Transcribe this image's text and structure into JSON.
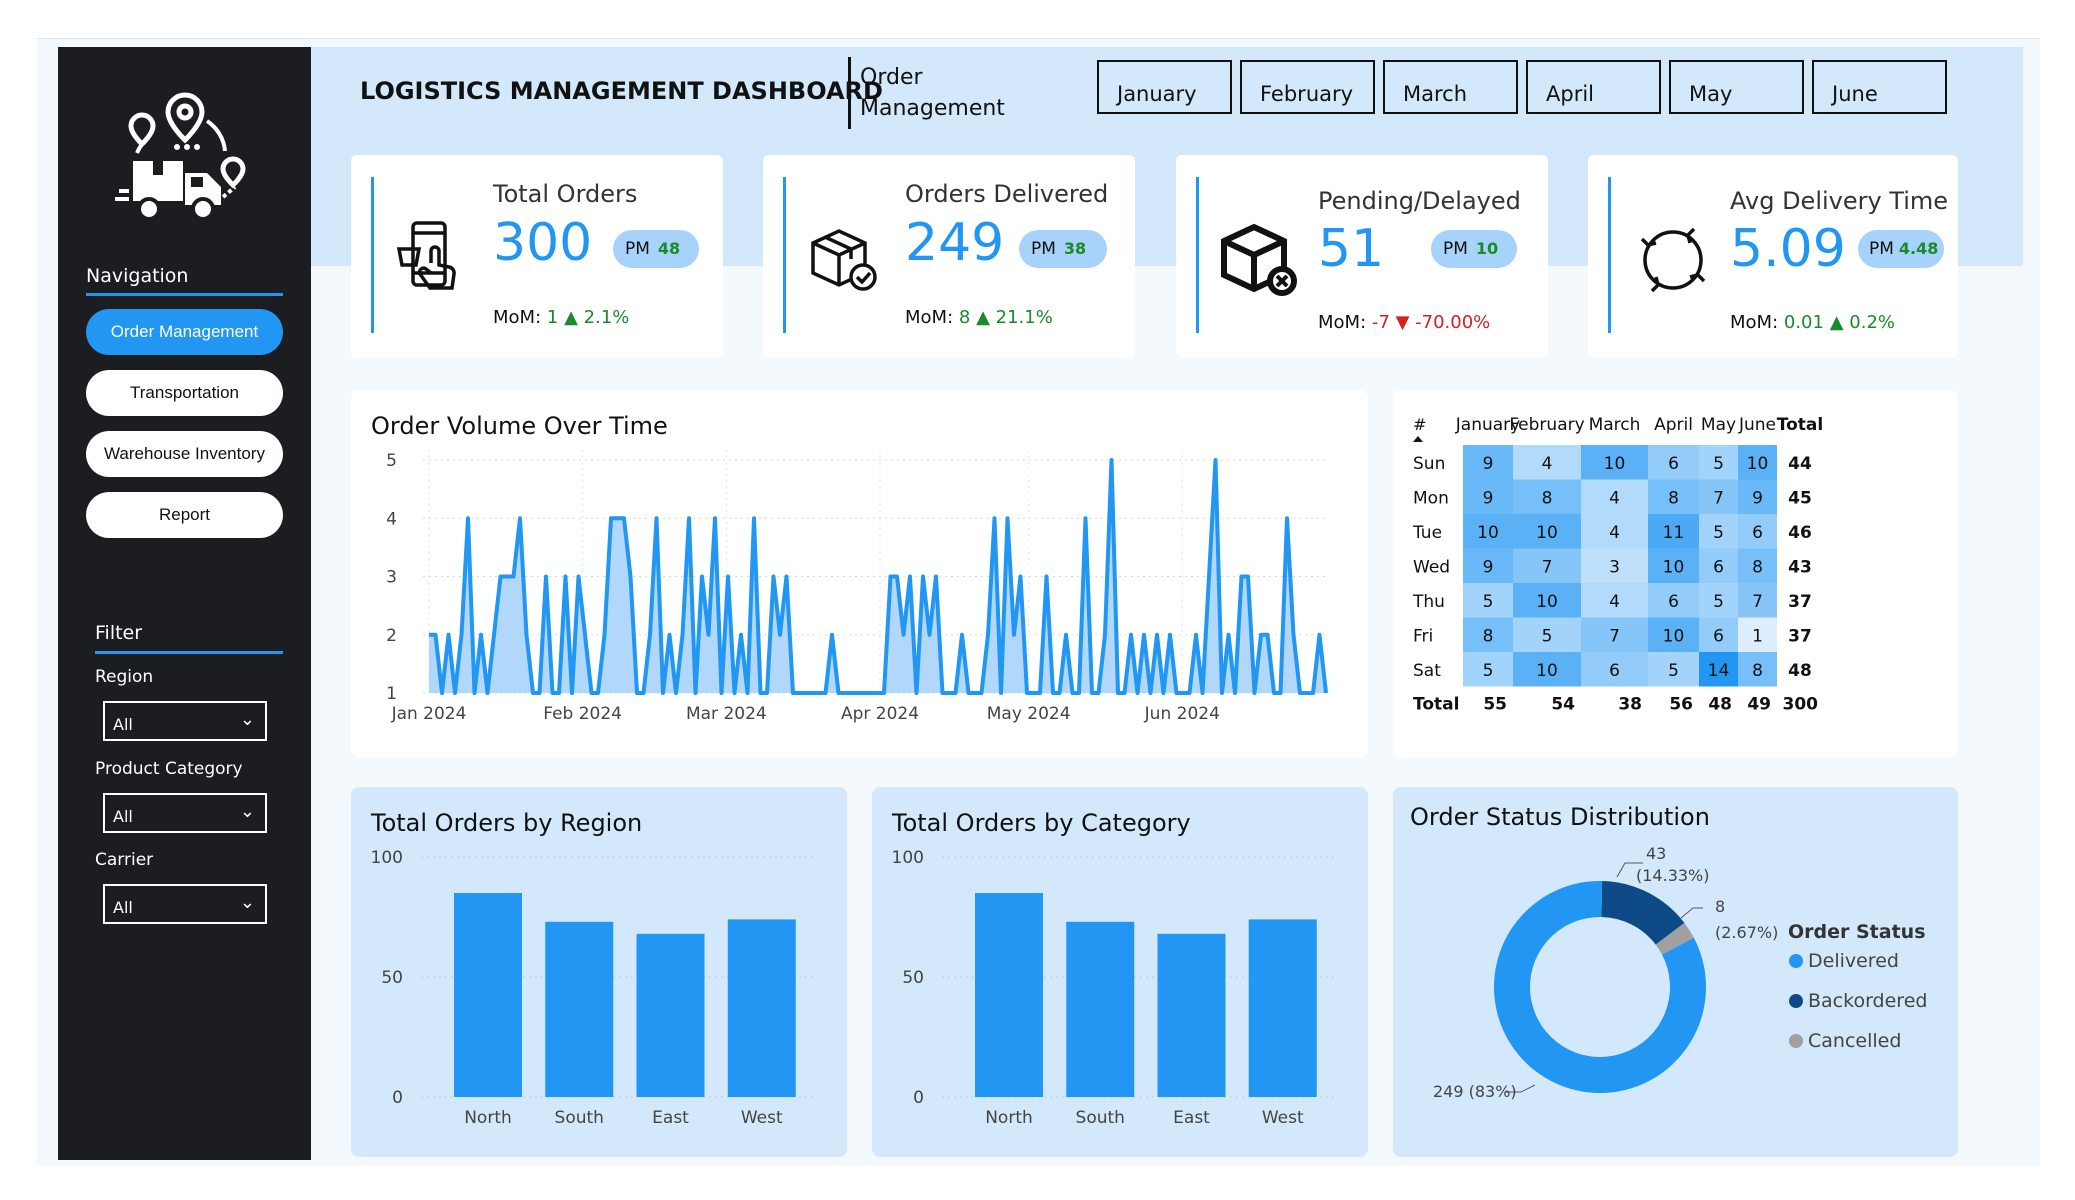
{
  "dashboard": {
    "title": "LOGISTICS MANAGEMENT DASHBOARD",
    "page_name": "Order Management"
  },
  "months": [
    "January",
    "February",
    "March",
    "April",
    "May",
    "June"
  ],
  "sidebar": {
    "nav_heading": "Navigation",
    "nav_items": [
      {
        "label": "Order Management",
        "active": true
      },
      {
        "label": "Transportation",
        "active": false
      },
      {
        "label": "Warehouse Inventory",
        "active": false
      },
      {
        "label": "Report",
        "active": false
      }
    ],
    "filter_heading": "Filter",
    "filters": [
      {
        "label": "Region",
        "value": "All"
      },
      {
        "label": "Product Category",
        "value": "All"
      },
      {
        "label": "Carrier",
        "value": "All"
      }
    ]
  },
  "kpis": [
    {
      "label": "Total Orders",
      "value": "300",
      "pm_label": "PM",
      "pm_value": "48",
      "mom_label": "MoM:",
      "mom_value": "1",
      "mom_pct": "2.1%",
      "trend": "up",
      "icon": "phone-order-icon"
    },
    {
      "label": "Orders Delivered",
      "value": "249",
      "pm_label": "PM",
      "pm_value": "38",
      "mom_label": "MoM:",
      "mom_value": "8",
      "mom_pct": "21.1%",
      "trend": "up",
      "icon": "package-check-icon"
    },
    {
      "label": "Pending/Delayed",
      "value": "51",
      "pm_label": "PM",
      "pm_value": "10",
      "mom_label": "MoM:",
      "mom_value": "-7",
      "mom_pct": "-70.00%",
      "trend": "down",
      "icon": "package-cancel-icon"
    },
    {
      "label": "Avg Delivery Time",
      "value": "5.09",
      "pm_label": "PM",
      "pm_value": "4.48",
      "mom_label": "MoM:",
      "mom_value": "0.01",
      "mom_pct": "0.2%",
      "trend": "up",
      "icon": "cycle-arrows-icon"
    }
  ],
  "colors": {
    "accent": "#2196f3",
    "dark_blue": "#0d4a86",
    "grey": "#a0a0a0",
    "positive": "#1b8a2b",
    "negative": "#d32020"
  },
  "chart_data": [
    {
      "type": "area",
      "title": "Order Volume Over Time",
      "x_ticks": [
        "Jan 2024",
        "Feb 2024",
        "Mar 2024",
        "Apr 2024",
        "May 2024",
        "Jun 2024"
      ],
      "ylim": [
        1,
        5
      ],
      "y_ticks": [
        1,
        2,
        3,
        4,
        5
      ],
      "x_start": "2024-01-01",
      "values": [
        2,
        2,
        1,
        2,
        1,
        2,
        4,
        1,
        2,
        1,
        2,
        3,
        3,
        3,
        4,
        2,
        1,
        1,
        3,
        1,
        1,
        3,
        1,
        3,
        2,
        1,
        1,
        2,
        4,
        4,
        4,
        3,
        1,
        1,
        2,
        4,
        1,
        2,
        1,
        2,
        4,
        1,
        3,
        2,
        4,
        1,
        3,
        1,
        2,
        1,
        4,
        1,
        1,
        3,
        2,
        3,
        1,
        1,
        1,
        1,
        1,
        1,
        2,
        1,
        1,
        1,
        1,
        1,
        1,
        1,
        1,
        3,
        3,
        2,
        3,
        1,
        3,
        2,
        3,
        1,
        1,
        1,
        2,
        1,
        1,
        1,
        2,
        4,
        1,
        4,
        2,
        3,
        1,
        1,
        1,
        3,
        1,
        1,
        2,
        1,
        1,
        4,
        1,
        1,
        2,
        5,
        1,
        1,
        2,
        1,
        2,
        1,
        2,
        1,
        2,
        1,
        1,
        1,
        2,
        1,
        3,
        5,
        1,
        2,
        1,
        3,
        3,
        1,
        2,
        2,
        1,
        1,
        4,
        2,
        1,
        1,
        1,
        2,
        1
      ]
    },
    {
      "type": "heatmap",
      "columns": [
        "January",
        "February",
        "March",
        "April",
        "May",
        "June"
      ],
      "header_hash": "#",
      "total_label": "Total",
      "rows": [
        {
          "day": "Sun",
          "values": [
            9,
            4,
            10,
            6,
            5,
            10
          ],
          "total": 44
        },
        {
          "day": "Mon",
          "values": [
            9,
            8,
            4,
            8,
            7,
            9
          ],
          "total": 45
        },
        {
          "day": "Tue",
          "values": [
            10,
            10,
            4,
            11,
            5,
            6
          ],
          "total": 46
        },
        {
          "day": "Wed",
          "values": [
            9,
            7,
            3,
            10,
            6,
            8
          ],
          "total": 43
        },
        {
          "day": "Thu",
          "values": [
            5,
            10,
            4,
            6,
            5,
            7
          ],
          "total": 37
        },
        {
          "day": "Fri",
          "values": [
            8,
            5,
            7,
            10,
            6,
            1
          ],
          "total": 37
        },
        {
          "day": "Sat",
          "values": [
            5,
            10,
            6,
            5,
            14,
            8
          ],
          "total": 48
        }
      ],
      "column_totals": [
        55,
        54,
        38,
        56,
        48,
        49
      ],
      "grand_total": 300
    },
    {
      "type": "bar",
      "title": "Total Orders by Region",
      "categories": [
        "North",
        "South",
        "East",
        "West"
      ],
      "values": [
        85,
        73,
        68,
        74
      ],
      "ylim": [
        0,
        100
      ],
      "y_ticks": [
        0,
        50,
        100
      ]
    },
    {
      "type": "bar",
      "title": "Total Orders by Category",
      "categories": [
        "North",
        "South",
        "East",
        "West"
      ],
      "values": [
        85,
        73,
        68,
        74
      ],
      "ylim": [
        0,
        100
      ],
      "y_ticks": [
        0,
        50,
        100
      ]
    },
    {
      "type": "pie",
      "title": "Order Status Distribution",
      "legend_title": "Order Status",
      "slices": [
        {
          "name": "Delivered",
          "value": 249,
          "label": "249 (83%)",
          "color": "#2196f3"
        },
        {
          "name": "Backordered",
          "value": 43,
          "label_value": "43",
          "label_pct": "(14.33%)",
          "color": "#0d4a86"
        },
        {
          "name": "Cancelled",
          "value": 8,
          "label_value": "8",
          "label_pct": "(2.67%)",
          "color": "#a0a0a0"
        }
      ]
    }
  ]
}
